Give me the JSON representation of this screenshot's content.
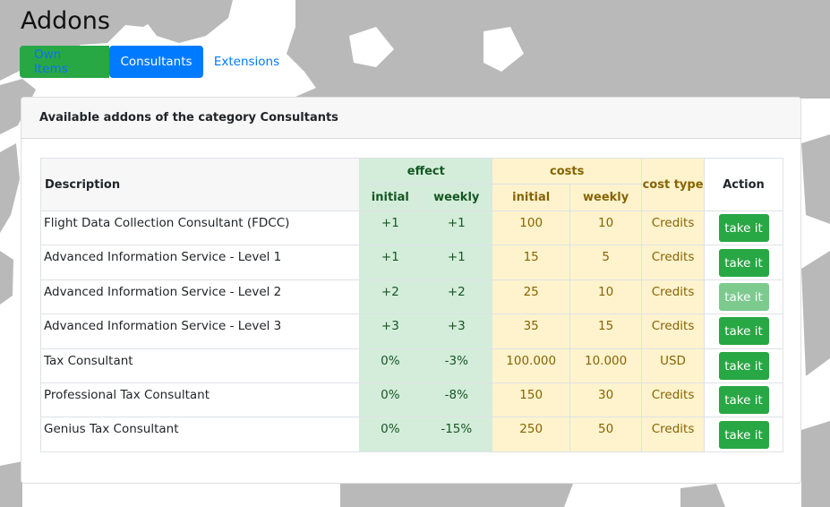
{
  "page": {
    "title": "Addons"
  },
  "tabs": [
    {
      "label": "Own Items"
    },
    {
      "label": "Consultants"
    },
    {
      "label": "Extensions"
    }
  ],
  "card": {
    "header": "Available addons of the category Consultants"
  },
  "table": {
    "headers": {
      "description": "Description",
      "effect": "effect",
      "costs": "costs",
      "cost_type": "cost type",
      "action": "Action",
      "initial": "initial",
      "weekly": "weekly"
    },
    "rows": [
      {
        "description": "Flight Data Collection Consultant (FDCC)",
        "effect_initial": "+1",
        "effect_weekly": "+1",
        "cost_initial": "100",
        "cost_weekly": "10",
        "cost_type": "Credits",
        "action": "take it",
        "enabled": true
      },
      {
        "description": "Advanced Information Service - Level 1",
        "effect_initial": "+1",
        "effect_weekly": "+1",
        "cost_initial": "15",
        "cost_weekly": "5",
        "cost_type": "Credits",
        "action": "take it",
        "enabled": true
      },
      {
        "description": "Advanced Information Service - Level 2",
        "effect_initial": "+2",
        "effect_weekly": "+2",
        "cost_initial": "25",
        "cost_weekly": "10",
        "cost_type": "Credits",
        "action": "take it",
        "enabled": false
      },
      {
        "description": "Advanced Information Service - Level 3",
        "effect_initial": "+3",
        "effect_weekly": "+3",
        "cost_initial": "35",
        "cost_weekly": "15",
        "cost_type": "Credits",
        "action": "take it",
        "enabled": true
      },
      {
        "description": "Tax Consultant",
        "effect_initial": "0%",
        "effect_weekly": "-3%",
        "cost_initial": "100.000",
        "cost_weekly": "10.000",
        "cost_type": "USD",
        "action": "take it",
        "enabled": true
      },
      {
        "description": "Professional Tax Consultant",
        "effect_initial": "0%",
        "effect_weekly": "-8%",
        "cost_initial": "150",
        "cost_weekly": "30",
        "cost_type": "Credits",
        "action": "take it",
        "enabled": true
      },
      {
        "description": "Genius Tax Consultant",
        "effect_initial": "0%",
        "effect_weekly": "-15%",
        "cost_initial": "250",
        "cost_weekly": "50",
        "cost_type": "Credits",
        "action": "take it",
        "enabled": true
      }
    ]
  },
  "colors": {
    "map_land": "#b9b9b9",
    "tab_green": "#28a745",
    "tab_active": "#007bff",
    "effect_bg": "#d4edda",
    "costs_bg": "#fff3cd",
    "button_green": "#28a745"
  }
}
